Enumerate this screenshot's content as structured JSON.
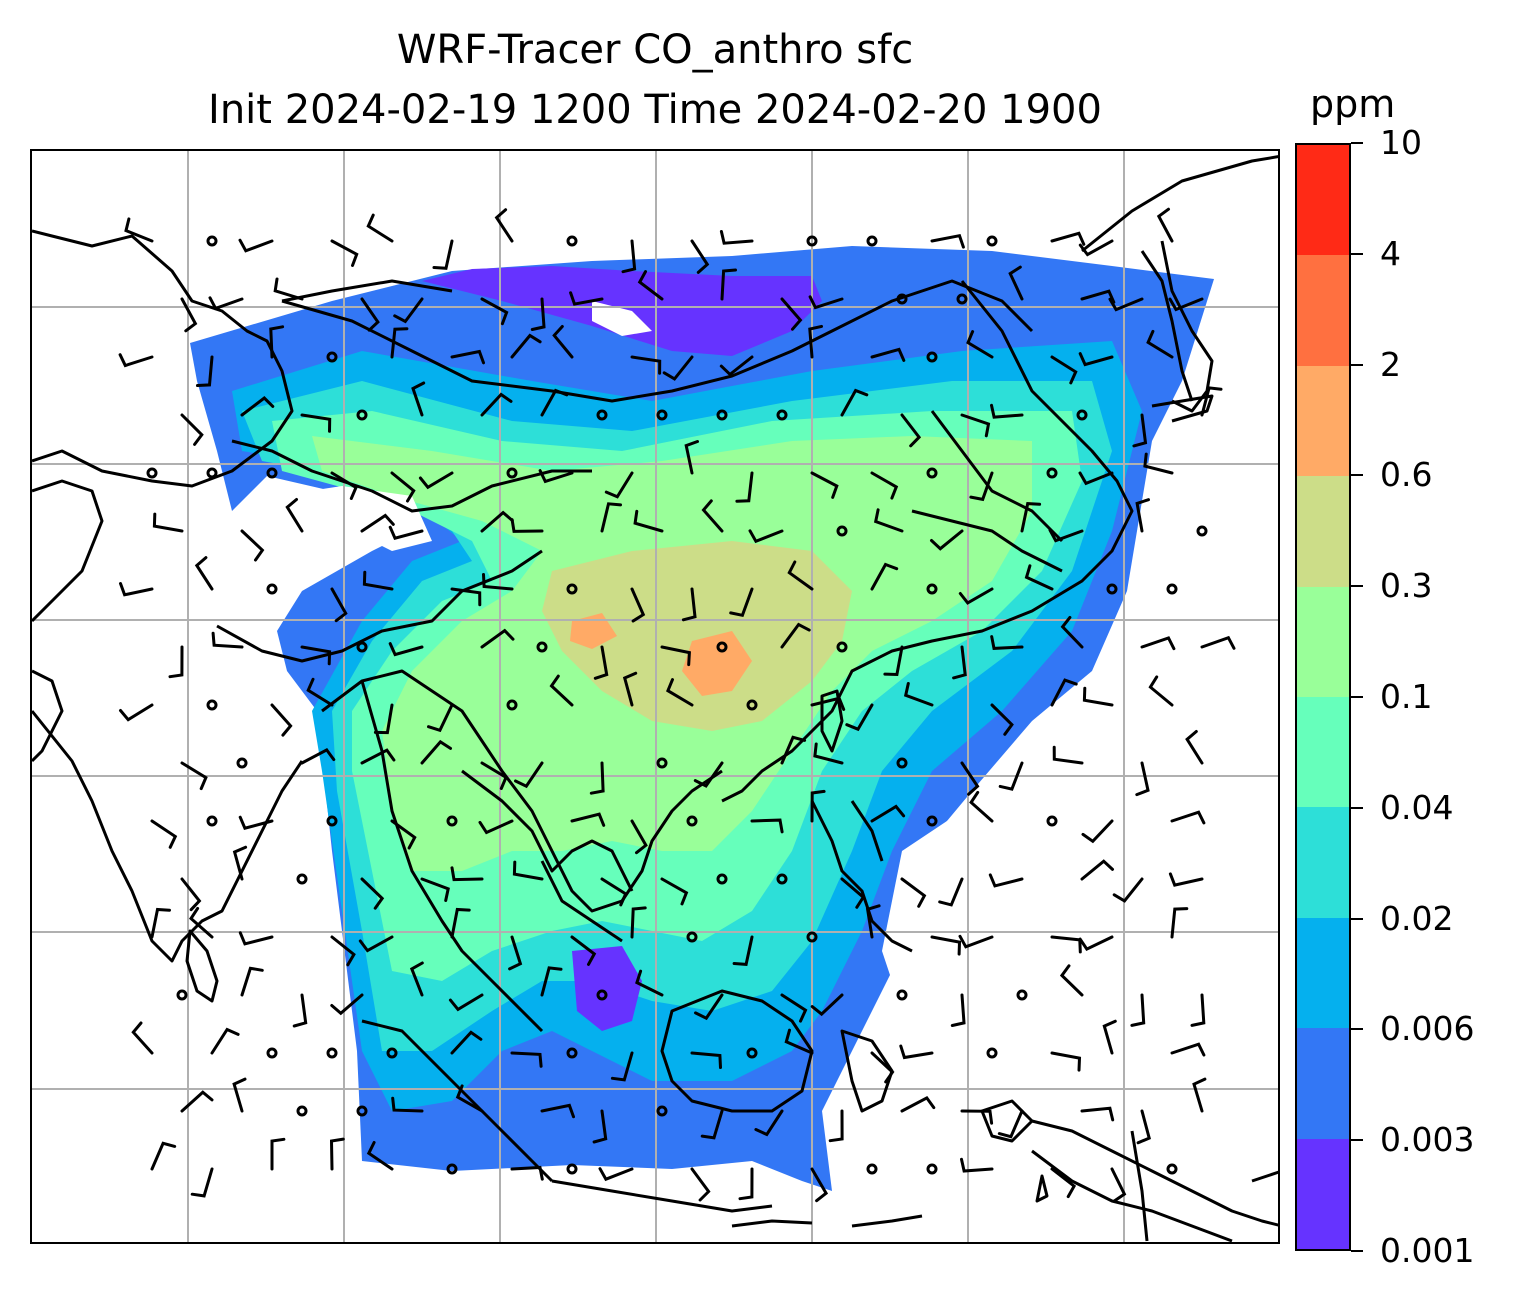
{
  "title": {
    "line1": "WRF-Tracer CO_anthro sfc",
    "line2": "Init 2024-02-19 1200 Time 2024-02-20 1900"
  },
  "colorbar": {
    "unit_label": "ppm",
    "ticks": [
      "0.001",
      "0.003",
      "0.006",
      "0.02",
      "0.04",
      "0.1",
      "0.3",
      "0.6",
      "2",
      "4",
      "10"
    ],
    "colors": [
      "#6633ff",
      "#3377f5",
      "#05b0ee",
      "#2ddfd8",
      "#66ffbb",
      "#99ff99",
      "#ccdd88",
      "#ffaa66",
      "#ff7040",
      "#ff2a16"
    ]
  },
  "map": {
    "variable": "CO_anthro",
    "level": "sfc",
    "gridlines": true,
    "coastline_color": "#000000",
    "gridline_color": "#b0b0b0",
    "wind_barbs": true,
    "calm_circles": true
  }
}
